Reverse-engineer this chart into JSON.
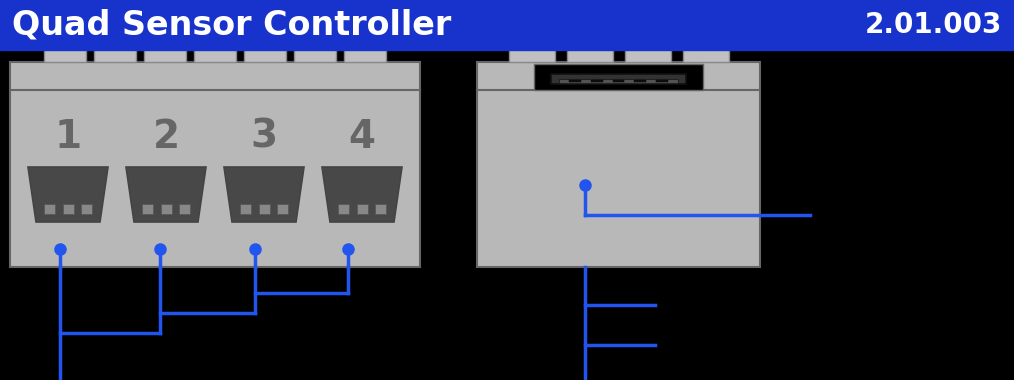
{
  "title": "Quad Sensor Controller",
  "version": "2.01.003",
  "title_bg": "#1833cc",
  "title_fg": "#ffffff",
  "bg_color": "#000000",
  "lego_gray": "#b8b8b8",
  "lego_light": "#d0d0d0",
  "lego_darker": "#666666",
  "lego_darkest": "#444444",
  "sensor_dark": "#484848",
  "sensor_mid": "#606060",
  "wire_color": "#2255ee",
  "stud_color": "#c0c0c0",
  "stud_border": "#888888",
  "title_fontsize": 24,
  "version_fontsize": 20,
  "num_fontsize": 28
}
